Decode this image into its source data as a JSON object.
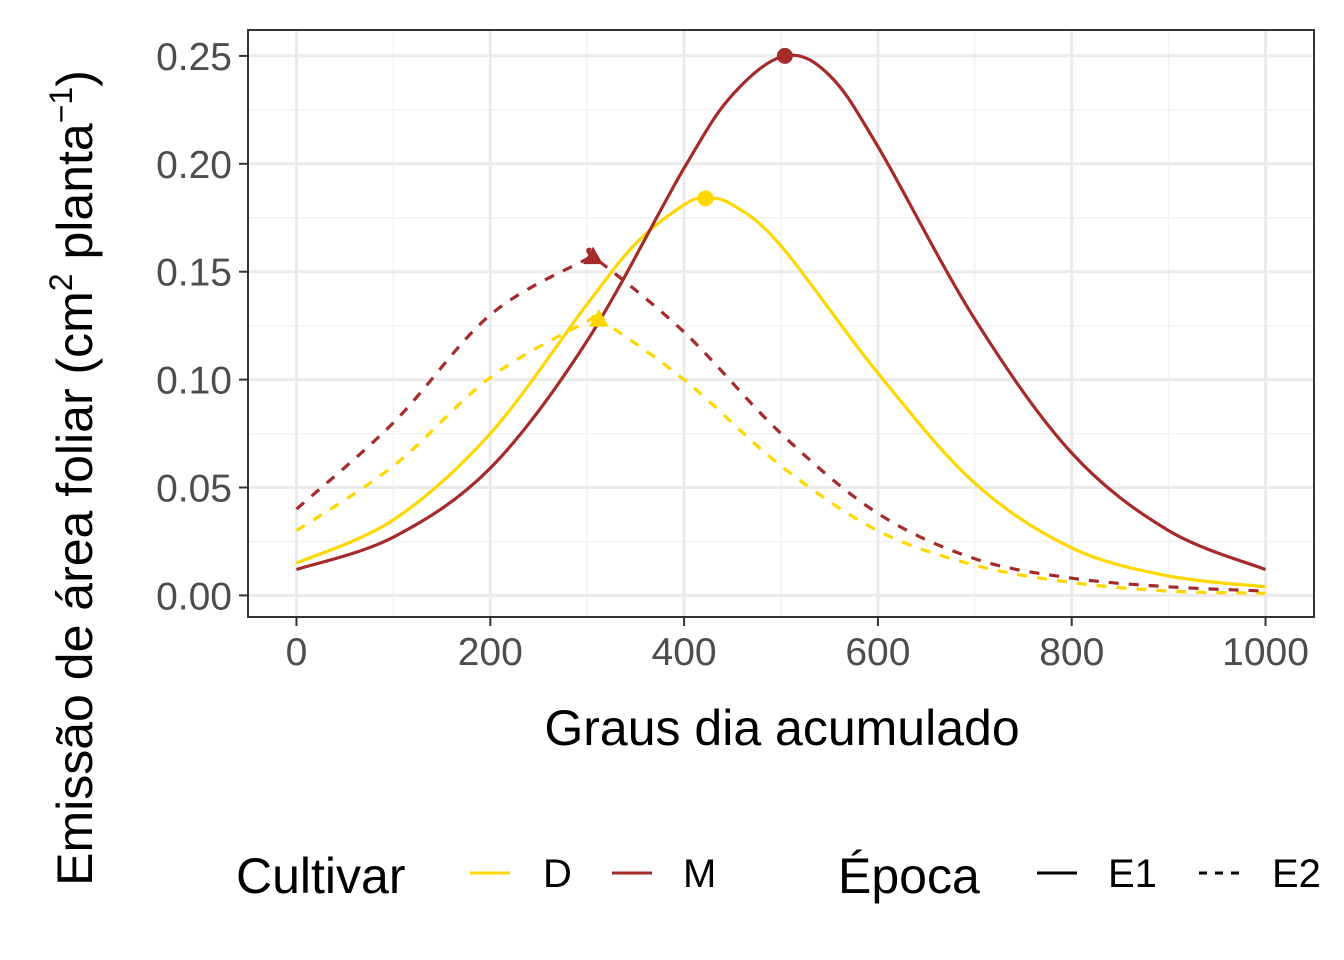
{
  "chart_data": {
    "type": "line",
    "xlabel": "Graus dia acumulado",
    "ylabel_parts": {
      "base": "Emissão de área foliar (cm",
      "sup1": "2",
      "mid": " planta",
      "sup2": "−1",
      "end": ")"
    },
    "xlim": [
      -50,
      1050
    ],
    "ylim": [
      -0.01,
      0.262
    ],
    "xticks": [
      0,
      200,
      400,
      600,
      800,
      1000
    ],
    "xtick_labels": [
      "0",
      "200",
      "400",
      "600",
      "800",
      "1000"
    ],
    "yticks": [
      0.0,
      0.05,
      0.1,
      0.15,
      0.2,
      0.25
    ],
    "ytick_labels": [
      "0.00",
      "0.05",
      "0.10",
      "0.15",
      "0.20",
      "0.25"
    ],
    "grid": true,
    "legend_position": "bottom",
    "legend": {
      "cultivar_title": "Cultivar",
      "cultivar_entries": [
        {
          "label": "D",
          "color": "#FFD700"
        },
        {
          "label": "M",
          "color": "#A52A2A"
        }
      ],
      "epoca_title": "Época",
      "epoca_entries": [
        {
          "label": "E1",
          "dash": "solid"
        },
        {
          "label": "E2",
          "dash": "dashed"
        }
      ]
    },
    "series": [
      {
        "cultivar": "D",
        "epoca": "E1",
        "color": "#FFD700",
        "dash": "solid",
        "x": [
          0,
          100,
          200,
          300,
          350,
          400,
          422,
          450,
          500,
          600,
          700,
          800,
          900,
          1000
        ],
        "y": [
          0.015,
          0.035,
          0.075,
          0.135,
          0.163,
          0.181,
          0.184,
          0.181,
          0.162,
          0.103,
          0.052,
          0.022,
          0.009,
          0.004
        ],
        "peak": {
          "x": 422,
          "y": 0.184,
          "marker": "circle"
        }
      },
      {
        "cultivar": "M",
        "epoca": "E1",
        "color": "#A52A2A",
        "dash": "solid",
        "x": [
          0,
          100,
          200,
          300,
          400,
          450,
          504,
          550,
          600,
          700,
          800,
          900,
          1000
        ],
        "y": [
          0.012,
          0.027,
          0.059,
          0.118,
          0.198,
          0.232,
          0.25,
          0.241,
          0.208,
          0.128,
          0.066,
          0.03,
          0.012
        ],
        "peak": {
          "x": 504,
          "y": 0.25,
          "marker": "circle"
        }
      },
      {
        "cultivar": "D",
        "epoca": "E2",
        "color": "#FFD700",
        "dash": "dashed",
        "x": [
          0,
          100,
          200,
          300,
          312,
          400,
          500,
          600,
          700,
          800,
          900,
          1000
        ],
        "y": [
          0.03,
          0.06,
          0.101,
          0.127,
          0.128,
          0.1,
          0.06,
          0.03,
          0.014,
          0.006,
          0.002,
          0.001
        ],
        "peak": {
          "x": 312,
          "y": 0.128,
          "marker": "triangle"
        }
      },
      {
        "cultivar": "M",
        "epoca": "E2",
        "color": "#A52A2A",
        "dash": "dashed",
        "x": [
          0,
          100,
          200,
          300,
          306,
          400,
          500,
          600,
          700,
          800,
          900,
          1000
        ],
        "y": [
          0.04,
          0.08,
          0.13,
          0.156,
          0.157,
          0.122,
          0.075,
          0.038,
          0.017,
          0.008,
          0.004,
          0.002
        ],
        "peak": {
          "x": 306,
          "y": 0.157,
          "marker": "triangle"
        }
      }
    ]
  }
}
